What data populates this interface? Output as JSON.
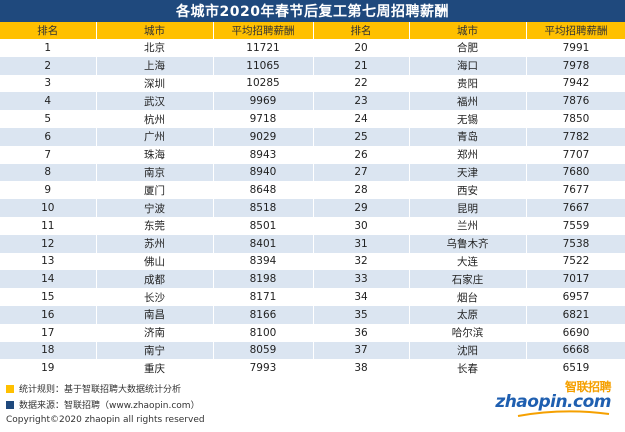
{
  "title": "各城市2020年春节后复工第七周招聘薪酬",
  "columns": [
    "排名",
    "城市",
    "平均招聘薪酬",
    "排名",
    "城市",
    "平均招聘薪酬"
  ],
  "rows": [
    [
      "1",
      "北京",
      "11721",
      "20",
      "合肥",
      "7991"
    ],
    [
      "2",
      "上海",
      "11065",
      "21",
      "海口",
      "7978"
    ],
    [
      "3",
      "深圳",
      "10285",
      "22",
      "贵阳",
      "7942"
    ],
    [
      "4",
      "武汉",
      "9969",
      "23",
      "福州",
      "7876"
    ],
    [
      "5",
      "杭州",
      "9718",
      "24",
      "无锡",
      "7850"
    ],
    [
      "6",
      "广州",
      "9029",
      "25",
      "青岛",
      "7782"
    ],
    [
      "7",
      "珠海",
      "8943",
      "26",
      "郑州",
      "7707"
    ],
    [
      "8",
      "南京",
      "8940",
      "27",
      "天津",
      "7680"
    ],
    [
      "9",
      "厦门",
      "8648",
      "28",
      "西安",
      "7677"
    ],
    [
      "10",
      "宁波",
      "8518",
      "29",
      "昆明",
      "7667"
    ],
    [
      "11",
      "东莞",
      "8501",
      "30",
      "兰州",
      "7559"
    ],
    [
      "12",
      "苏州",
      "8401",
      "31",
      "乌鲁木齐",
      "7538"
    ],
    [
      "13",
      "佛山",
      "8394",
      "32",
      "大连",
      "7522"
    ],
    [
      "14",
      "成都",
      "8198",
      "33",
      "石家庄",
      "7017"
    ],
    [
      "15",
      "长沙",
      "8171",
      "34",
      "烟台",
      "6957"
    ],
    [
      "16",
      "南昌",
      "8166",
      "35",
      "太原",
      "6821"
    ],
    [
      "17",
      "济南",
      "8100",
      "36",
      "哈尔滨",
      "6690"
    ],
    [
      "18",
      "南宁",
      "8059",
      "37",
      "沈阳",
      "6668"
    ],
    [
      "19",
      "重庆",
      "7993",
      "38",
      "长春",
      "6519"
    ]
  ],
  "footer": {
    "rule_text": "统计规则：基于智联招聘大数据统计分析",
    "source_text": "数据来源：智联招聘（www.zhaopin.com）",
    "copyright": "Copyright©2020 zhaopin all rights reserved",
    "logo_cn": "智联招聘",
    "logo_en": "zhaopin.com"
  },
  "colors": {
    "title_bg": "#1f497d",
    "header_bg": "#ffc000",
    "row_alt_bg": "#dbe5f1",
    "legend_yellow": "#ffc000",
    "legend_blue": "#1f497d"
  }
}
